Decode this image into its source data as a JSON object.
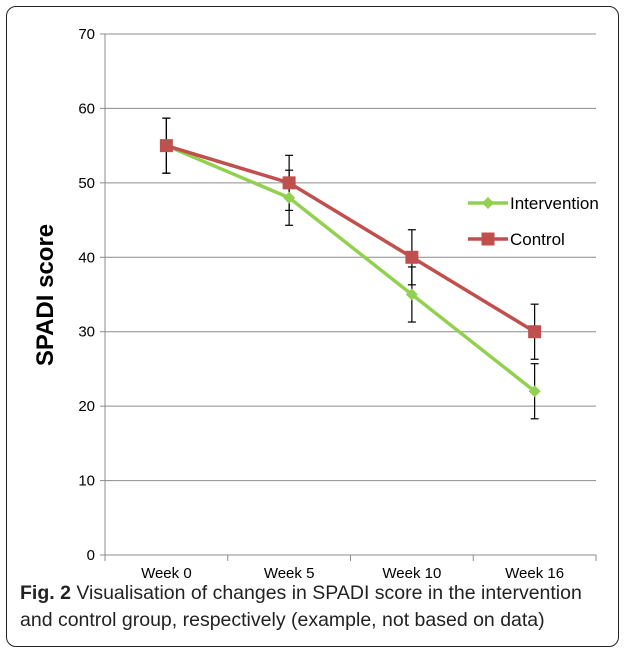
{
  "caption": {
    "label": "Fig. 2",
    "text": " Visualisation of changes in SPADI score in the intervention and control group, respectively (example, not based on data)"
  },
  "chart_data": {
    "type": "line",
    "title": "",
    "xlabel": "",
    "ylabel": "SPADI score",
    "categories": [
      "Week 0",
      "Week 5",
      "Week 10",
      "Week 16"
    ],
    "ylim": [
      0,
      70
    ],
    "yticks": [
      0,
      10,
      20,
      30,
      40,
      50,
      60,
      70
    ],
    "grid": true,
    "legend_position": "right",
    "series": [
      {
        "name": "Intervention",
        "values": [
          55,
          48,
          35,
          22
        ],
        "error": [
          3.7,
          3.7,
          3.7,
          3.7
        ],
        "color": "#92D050",
        "marker": "diamond"
      },
      {
        "name": "Control",
        "values": [
          55,
          50,
          40,
          30
        ],
        "error": [
          3.7,
          3.7,
          3.7,
          3.7
        ],
        "color": "#C0504D",
        "marker": "square"
      }
    ]
  }
}
